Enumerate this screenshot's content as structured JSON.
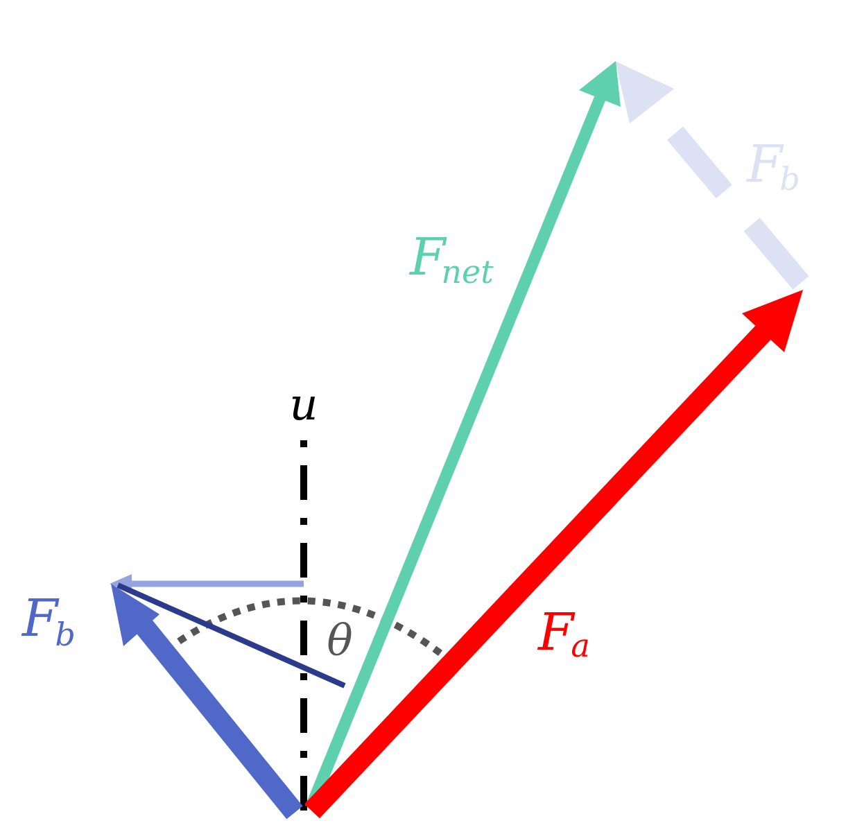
{
  "colors": {
    "force_a": "#ff0000",
    "force_b": "#5068c8",
    "force_b_ghost": "#dce1f4",
    "force_b_horizontal": "#95a3e0",
    "projection_line": "#2c3a8c",
    "net_force": "#5fd0ae",
    "axis": "#000000",
    "angle_arc": "#555555"
  },
  "labels": {
    "axis": "u",
    "angle": "θ",
    "force_a": {
      "main": "F",
      "sub": "a"
    },
    "force_b": {
      "main": "F",
      "sub": "b"
    },
    "force_b_ghost": {
      "main": "F",
      "sub": "b"
    },
    "net_force": {
      "main": "F",
      "sub": "net"
    }
  }
}
